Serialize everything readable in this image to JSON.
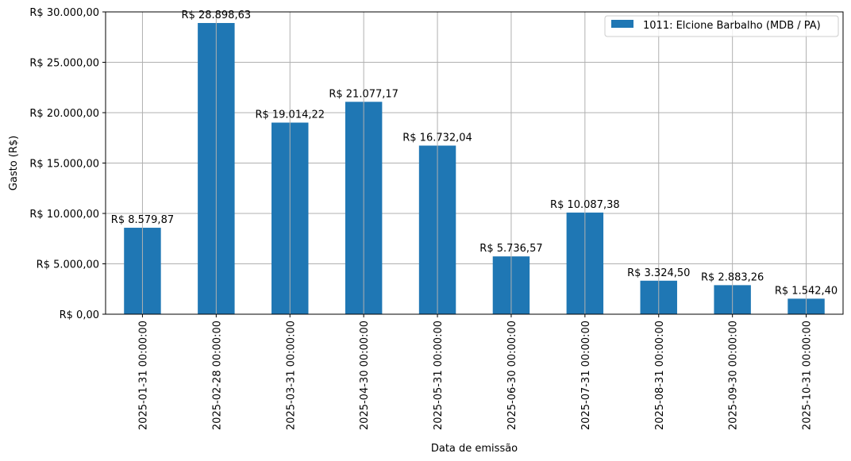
{
  "chart_data": {
    "type": "bar",
    "title": "",
    "xlabel": "Data de emissão",
    "ylabel": "Gasto (R$)",
    "categories": [
      "2025-01-31 00:00:00",
      "2025-02-28 00:00:00",
      "2025-03-31 00:00:00",
      "2025-04-30 00:00:00",
      "2025-05-31 00:00:00",
      "2025-06-30 00:00:00",
      "2025-07-31 00:00:00",
      "2025-08-31 00:00:00",
      "2025-09-30 00:00:00",
      "2025-10-31 00:00:00"
    ],
    "series": [
      {
        "name": "1011: Elcione Barbalho (MDB / PA)",
        "color": "#1f77b4",
        "values": [
          8579.87,
          28898.63,
          19014.22,
          21077.17,
          16732.04,
          5736.57,
          10087.38,
          3324.5,
          2883.26,
          1542.4
        ],
        "labels": [
          "R$ 8.579,87",
          "R$ 28.898,63",
          "R$ 19.014,22",
          "R$ 21.077,17",
          "R$ 16.732,04",
          "R$ 5.736,57",
          "R$ 10.087,38",
          "R$ 3.324,50",
          "R$ 2.883,26",
          "R$ 1.542,40"
        ]
      }
    ],
    "ylim": [
      0,
      30000
    ],
    "yticks": [
      0,
      5000,
      10000,
      15000,
      20000,
      25000,
      30000
    ],
    "ytick_labels": [
      "R$ 0,00",
      "R$ 5.000,00",
      "R$ 10.000,00",
      "R$ 15.000,00",
      "R$ 20.000,00",
      "R$ 25.000,00",
      "R$ 30.000,00"
    ],
    "grid": true,
    "legend_position": "top-right"
  }
}
